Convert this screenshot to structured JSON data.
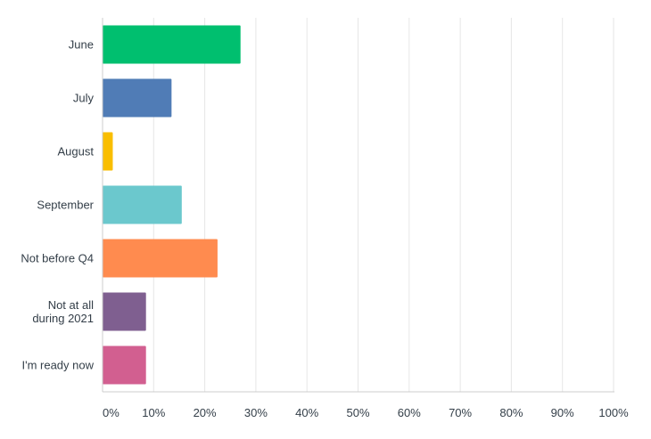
{
  "chart_data": {
    "type": "bar",
    "orientation": "horizontal",
    "title": "",
    "xlabel": "",
    "ylabel": "",
    "categories": [
      [
        "June"
      ],
      [
        "July"
      ],
      [
        "August"
      ],
      [
        "September"
      ],
      [
        "Not before Q4"
      ],
      [
        "Not at all",
        "during 2021"
      ],
      [
        "I'm ready now"
      ]
    ],
    "values": [
      27,
      13.5,
      2,
      15.5,
      22.5,
      8.5,
      8.5
    ],
    "value_unit": "%",
    "colors": [
      "#00bf6f",
      "#507cb6",
      "#f9be00",
      "#6bc8cd",
      "#ff8b4f",
      "#7f5f90",
      "#d25f90"
    ],
    "xlim": [
      0,
      100
    ],
    "x_ticks": [
      "0%",
      "10%",
      "20%",
      "30%",
      "40%",
      "50%",
      "60%",
      "70%",
      "80%",
      "90%",
      "100%"
    ],
    "grid": "vertical",
    "grid_color": "#e6e6e6",
    "axis_color": "#cccccc",
    "legend": "none"
  }
}
